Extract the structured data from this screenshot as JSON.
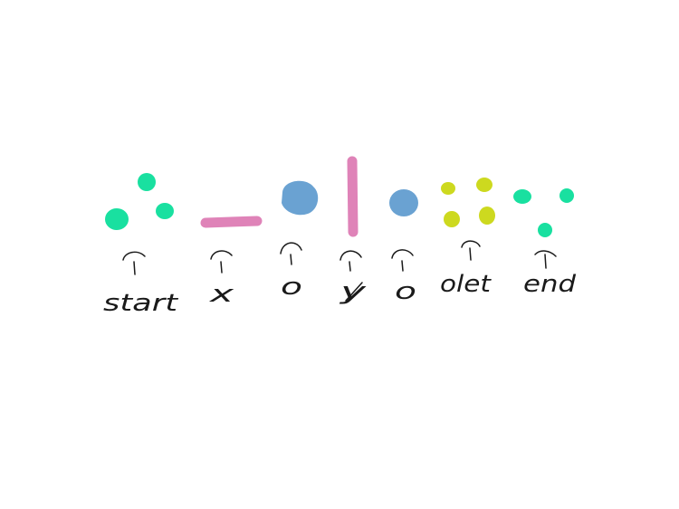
{
  "colors": {
    "teal": "#19e0a0",
    "pink": "#df83b8",
    "blue": "#6aa2d2",
    "lime": "#cdd91f",
    "ink": "#1a1a1a",
    "background": "#ffffff"
  },
  "groups": [
    {
      "label": "start",
      "color": "teal",
      "kind": "dots-3"
    },
    {
      "label": "x",
      "color": "pink",
      "kind": "horizontal-bar"
    },
    {
      "label": "o",
      "color": "blue",
      "kind": "big-blob"
    },
    {
      "label": "y",
      "color": "pink",
      "kind": "vertical-bar"
    },
    {
      "label": "o",
      "color": "blue",
      "kind": "small-blob"
    },
    {
      "label": "olet",
      "color": "lime",
      "kind": "dots-4"
    },
    {
      "label": "end",
      "color": "teal",
      "kind": "dots-3"
    }
  ]
}
